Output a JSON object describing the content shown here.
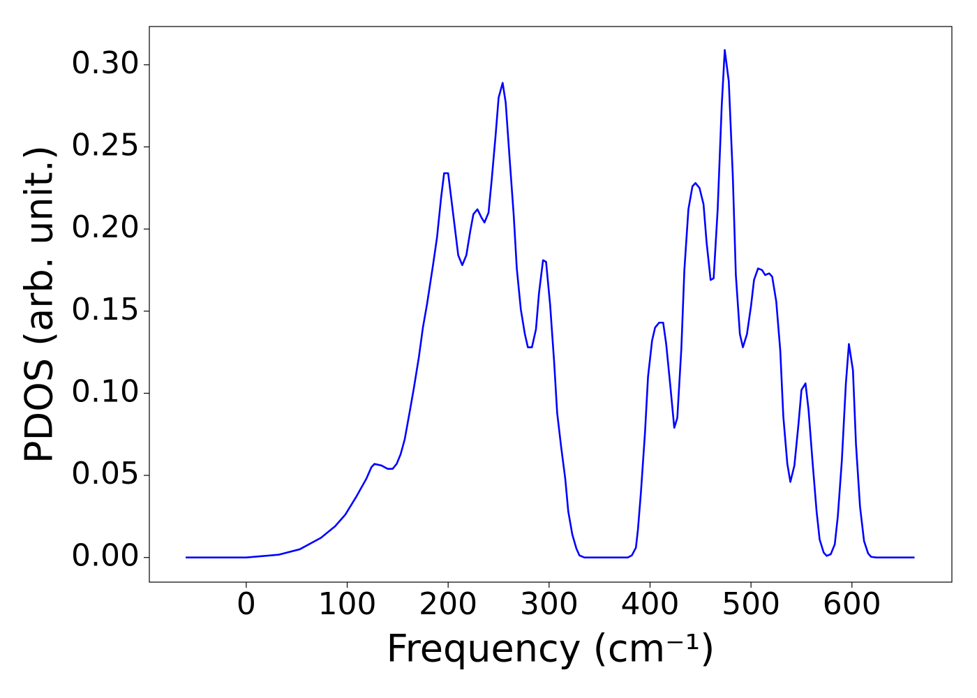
{
  "chart_data": {
    "type": "line",
    "xlabel": "Frequency (cm⁻¹)",
    "ylabel": "PDOS (arb. unit.)",
    "xlim": [
      -96,
      699
    ],
    "ylim": [
      -0.015,
      0.3233
    ],
    "xticks": [
      0,
      100,
      200,
      300,
      400,
      500,
      600
    ],
    "yticks": [
      {
        "value": 0,
        "label": "0.00"
      },
      0.05,
      {
        "value": 0.1,
        "label": "0.10"
      },
      0.15,
      {
        "value": 0.2,
        "label": "0.20"
      },
      0.25,
      {
        "value": 0.3,
        "label": "0.30"
      }
    ],
    "grid": false,
    "x": [
      -60,
      0,
      32,
      53,
      74,
      88,
      98,
      109,
      119,
      124,
      127,
      134,
      140,
      145,
      149,
      153,
      157,
      162,
      166,
      171,
      175,
      179,
      185,
      189,
      193,
      196,
      200,
      203,
      207,
      210,
      214,
      218,
      222,
      225,
      229,
      233,
      236,
      240,
      243,
      247,
      250,
      254,
      257,
      261,
      265,
      268,
      272,
      276,
      279,
      283,
      287,
      290,
      294,
      297,
      301,
      305,
      308,
      312,
      316,
      319,
      323,
      327,
      330,
      335,
      378,
      382,
      386,
      388,
      391,
      395,
      398,
      402,
      405,
      409,
      413,
      416,
      420,
      424,
      427,
      431,
      434,
      438,
      442,
      445,
      449,
      453,
      456,
      460,
      463,
      467,
      471,
      474,
      478,
      482,
      485,
      489,
      492,
      496,
      500,
      503,
      507,
      511,
      514,
      518,
      521,
      525,
      529,
      532,
      536,
      539,
      543,
      547,
      550,
      554,
      557,
      561,
      565,
      568,
      572,
      575,
      579,
      583,
      586,
      590,
      594,
      597,
      601,
      604,
      608,
      612,
      616,
      619,
      624,
      662
    ],
    "series": [
      {
        "color": "#0000ff",
        "values": [
          0,
          0,
          0.0017,
          0.005,
          0.012,
          0.019,
          0.026,
          0.037,
          0.048,
          0.055,
          0.057,
          0.056,
          0.054,
          0.054,
          0.057,
          0.063,
          0.072,
          0.089,
          0.103,
          0.122,
          0.14,
          0.154,
          0.178,
          0.195,
          0.219,
          0.234,
          0.234,
          0.219,
          0.199,
          0.184,
          0.178,
          0.184,
          0.199,
          0.209,
          0.212,
          0.207,
          0.204,
          0.21,
          0.229,
          0.257,
          0.28,
          0.289,
          0.277,
          0.242,
          0.208,
          0.176,
          0.151,
          0.136,
          0.128,
          0.128,
          0.139,
          0.161,
          0.181,
          0.18,
          0.154,
          0.119,
          0.088,
          0.067,
          0.048,
          0.028,
          0.014,
          0.0055,
          0.0013,
          0,
          0,
          0.0013,
          0.006,
          0.017,
          0.04,
          0.076,
          0.11,
          0.132,
          0.14,
          0.143,
          0.143,
          0.13,
          0.105,
          0.079,
          0.085,
          0.127,
          0.175,
          0.212,
          0.226,
          0.228,
          0.225,
          0.215,
          0.192,
          0.169,
          0.17,
          0.212,
          0.275,
          0.309,
          0.29,
          0.232,
          0.172,
          0.136,
          0.128,
          0.136,
          0.153,
          0.169,
          0.176,
          0.175,
          0.172,
          0.173,
          0.171,
          0.156,
          0.126,
          0.086,
          0.057,
          0.046,
          0.056,
          0.081,
          0.102,
          0.106,
          0.09,
          0.058,
          0.028,
          0.011,
          0.003,
          0.001,
          0.002,
          0.008,
          0.025,
          0.059,
          0.106,
          0.13,
          0.114,
          0.069,
          0.031,
          0.01,
          0.0025,
          0.0004,
          0,
          0
        ]
      }
    ]
  }
}
